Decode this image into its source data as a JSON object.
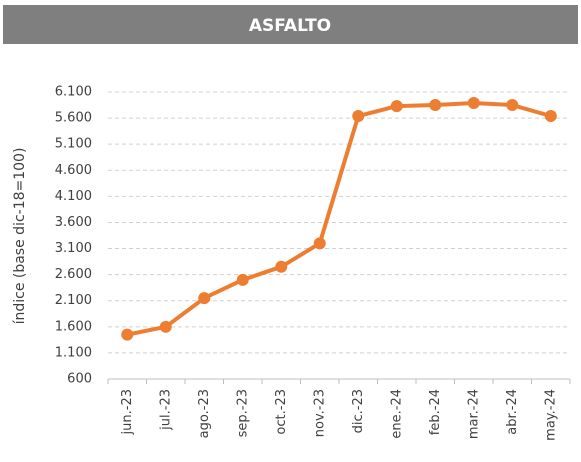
{
  "chart_data": {
    "type": "line",
    "title": "ASFALTO",
    "y_label": "índice (base dic-18=100)",
    "categories": [
      "jun.-23",
      "jul.-23",
      "ago.-23",
      "sep.-23",
      "oct.-23",
      "nov.-23",
      "dic.-23",
      "ene.-24",
      "feb.-24",
      "mar.-24",
      "abr.-24",
      "may.-24"
    ],
    "series": [
      {
        "name": "ASFALTO",
        "color": "#ed7d31",
        "values": [
          1450,
          1600,
          2150,
          2500,
          2750,
          3200,
          5640,
          5830,
          5850,
          5890,
          5850,
          5640
        ]
      }
    ],
    "ylim": [
      600,
      6100
    ],
    "yticks": [
      600,
      {
        "value": 1100,
        "label": "1.100"
      },
      {
        "value": 1600,
        "label": "1.600"
      },
      {
        "value": 2100,
        "label": "2.100"
      },
      {
        "value": 2600,
        "label": "2.600"
      },
      {
        "value": 3100,
        "label": "3.100"
      },
      {
        "value": 3600,
        "label": "3.600"
      },
      {
        "value": 4100,
        "label": "4.100"
      },
      {
        "value": 4600,
        "label": "4.600"
      },
      {
        "value": 5100,
        "label": "5.100"
      },
      {
        "value": 5600,
        "label": "5.600"
      },
      {
        "value": 6100,
        "label": "6.100"
      }
    ],
    "grid": true
  }
}
